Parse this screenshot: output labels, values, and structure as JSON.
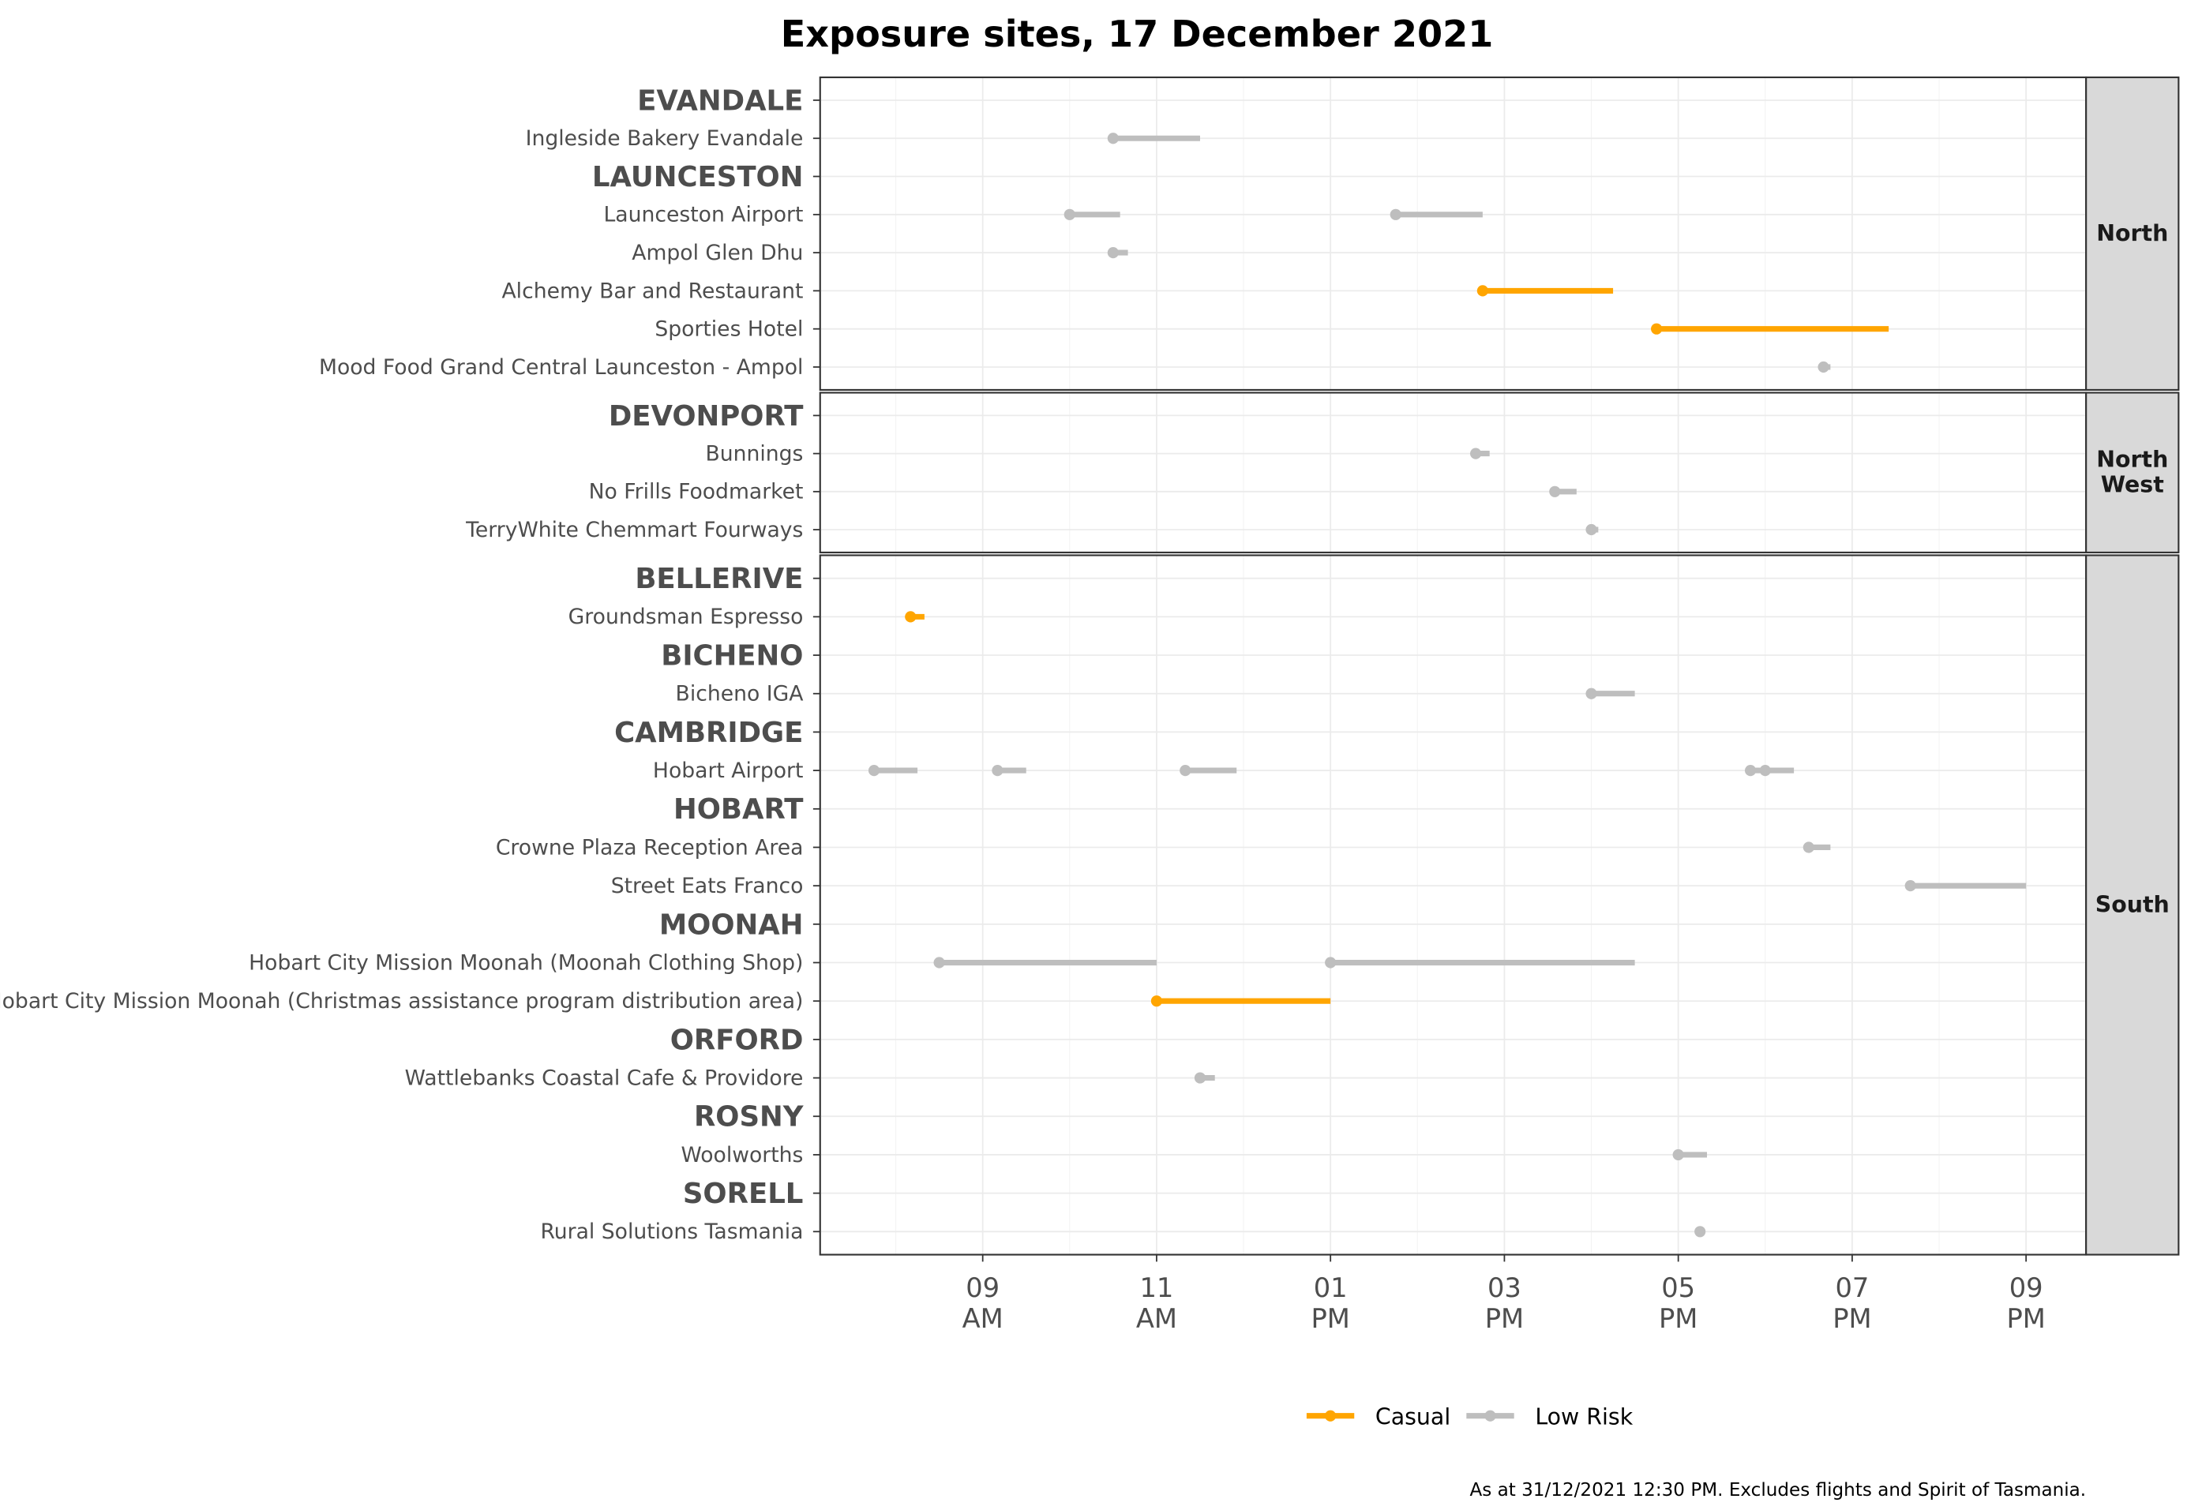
{
  "chart_data": {
    "type": "interval-dot",
    "title": "Exposure sites, 17 December 2021",
    "footnote": "As at 31/12/2021 12:30 PM. Excludes flights and Spirit of Tasmania.",
    "xlim_hours": [
      7.13,
      21.69
    ],
    "x_ticks": [
      {
        "value": 9,
        "line1": "09",
        "line2": "AM"
      },
      {
        "value": 11,
        "line1": "11",
        "line2": "AM"
      },
      {
        "value": 13,
        "line1": "01",
        "line2": "PM"
      },
      {
        "value": 15,
        "line1": "03",
        "line2": "PM"
      },
      {
        "value": 17,
        "line1": "05",
        "line2": "PM"
      },
      {
        "value": 19,
        "line1": "07",
        "line2": "PM"
      },
      {
        "value": 21,
        "line1": "09",
        "line2": "PM"
      }
    ],
    "legend": [
      {
        "label": "Casual",
        "color": "#FFA500"
      },
      {
        "label": "Low Risk",
        "color": "#BEBEBE"
      }
    ],
    "panels": [
      {
        "strip": [
          "North"
        ],
        "rows": [
          {
            "label": "EVANDALE",
            "header": true,
            "intervals": []
          },
          {
            "label": "Ingleside Bakery Evandale",
            "intervals": [
              {
                "start": 10.5,
                "end": 11.5,
                "type": "Low Risk"
              }
            ]
          },
          {
            "label": "LAUNCESTON",
            "header": true,
            "intervals": []
          },
          {
            "label": "Launceston Airport",
            "intervals": [
              {
                "start": 10.0,
                "end": 10.58,
                "type": "Low Risk"
              },
              {
                "start": 13.75,
                "end": 14.75,
                "type": "Low Risk"
              }
            ]
          },
          {
            "label": "Ampol Glen Dhu",
            "intervals": [
              {
                "start": 10.5,
                "end": 10.67,
                "type": "Low Risk"
              }
            ]
          },
          {
            "label": "Alchemy Bar and Restaurant",
            "intervals": [
              {
                "start": 14.75,
                "end": 16.25,
                "type": "Casual"
              }
            ]
          },
          {
            "label": "Sporties Hotel",
            "intervals": [
              {
                "start": 16.75,
                "end": 19.42,
                "type": "Casual"
              }
            ]
          },
          {
            "label": "Mood Food Grand Central Launceston - Ampol",
            "intervals": [
              {
                "start": 18.67,
                "end": 18.75,
                "type": "Low Risk"
              }
            ]
          }
        ]
      },
      {
        "strip": [
          "North",
          "West"
        ],
        "rows": [
          {
            "label": "DEVONPORT",
            "header": true,
            "intervals": []
          },
          {
            "label": "Bunnings",
            "intervals": [
              {
                "start": 14.67,
                "end": 14.83,
                "type": "Low Risk"
              }
            ]
          },
          {
            "label": "No Frills Foodmarket",
            "intervals": [
              {
                "start": 15.58,
                "end": 15.83,
                "type": "Low Risk"
              }
            ]
          },
          {
            "label": "TerryWhite Chemmart Fourways",
            "intervals": [
              {
                "start": 16.0,
                "end": 16.08,
                "type": "Low Risk"
              }
            ]
          }
        ]
      },
      {
        "strip": [
          "South"
        ],
        "rows": [
          {
            "label": "BELLERIVE",
            "header": true,
            "intervals": []
          },
          {
            "label": "Groundsman Espresso",
            "intervals": [
              {
                "start": 8.17,
                "end": 8.33,
                "type": "Casual"
              }
            ]
          },
          {
            "label": "BICHENO",
            "header": true,
            "intervals": []
          },
          {
            "label": "Bicheno IGA",
            "intervals": [
              {
                "start": 16.0,
                "end": 16.5,
                "type": "Low Risk"
              }
            ]
          },
          {
            "label": "CAMBRIDGE",
            "header": true,
            "intervals": []
          },
          {
            "label": "Hobart Airport",
            "intervals": [
              {
                "start": 7.75,
                "end": 8.25,
                "type": "Low Risk"
              },
              {
                "start": 9.17,
                "end": 9.5,
                "type": "Low Risk"
              },
              {
                "start": 11.33,
                "end": 11.92,
                "type": "Low Risk"
              },
              {
                "start": 17.83,
                "end": 18.0,
                "type": "Low Risk"
              },
              {
                "start": 18.0,
                "end": 18.33,
                "type": "Low Risk"
              }
            ]
          },
          {
            "label": "HOBART",
            "header": true,
            "intervals": []
          },
          {
            "label": "Crowne Plaza Reception Area",
            "intervals": [
              {
                "start": 18.5,
                "end": 18.75,
                "type": "Low Risk"
              }
            ]
          },
          {
            "label": "Street Eats Franco",
            "intervals": [
              {
                "start": 19.67,
                "end": 21.0,
                "type": "Low Risk"
              }
            ]
          },
          {
            "label": "MOONAH",
            "header": true,
            "intervals": []
          },
          {
            "label": "Hobart City Mission Moonah (Moonah Clothing Shop)",
            "intervals": [
              {
                "start": 8.5,
                "end": 11.0,
                "type": "Low Risk"
              },
              {
                "start": 13.0,
                "end": 16.5,
                "type": "Low Risk"
              }
            ]
          },
          {
            "label": "Hobart City Mission Moonah (Christmas assistance program distribution area)",
            "intervals": [
              {
                "start": 11.0,
                "end": 13.0,
                "type": "Casual"
              }
            ]
          },
          {
            "label": "ORFORD",
            "header": true,
            "intervals": []
          },
          {
            "label": "Wattlebanks Coastal Cafe & Providore",
            "intervals": [
              {
                "start": 11.5,
                "end": 11.67,
                "type": "Low Risk"
              }
            ]
          },
          {
            "label": "ROSNY",
            "header": true,
            "intervals": []
          },
          {
            "label": "Woolworths",
            "intervals": [
              {
                "start": 17.0,
                "end": 17.33,
                "type": "Low Risk"
              }
            ]
          },
          {
            "label": "SORELL",
            "header": true,
            "intervals": []
          },
          {
            "label": "Rural Solutions Tasmania",
            "intervals": [
              {
                "start": 17.25,
                "end": 17.25,
                "type": "Low Risk"
              }
            ]
          }
        ]
      }
    ]
  }
}
